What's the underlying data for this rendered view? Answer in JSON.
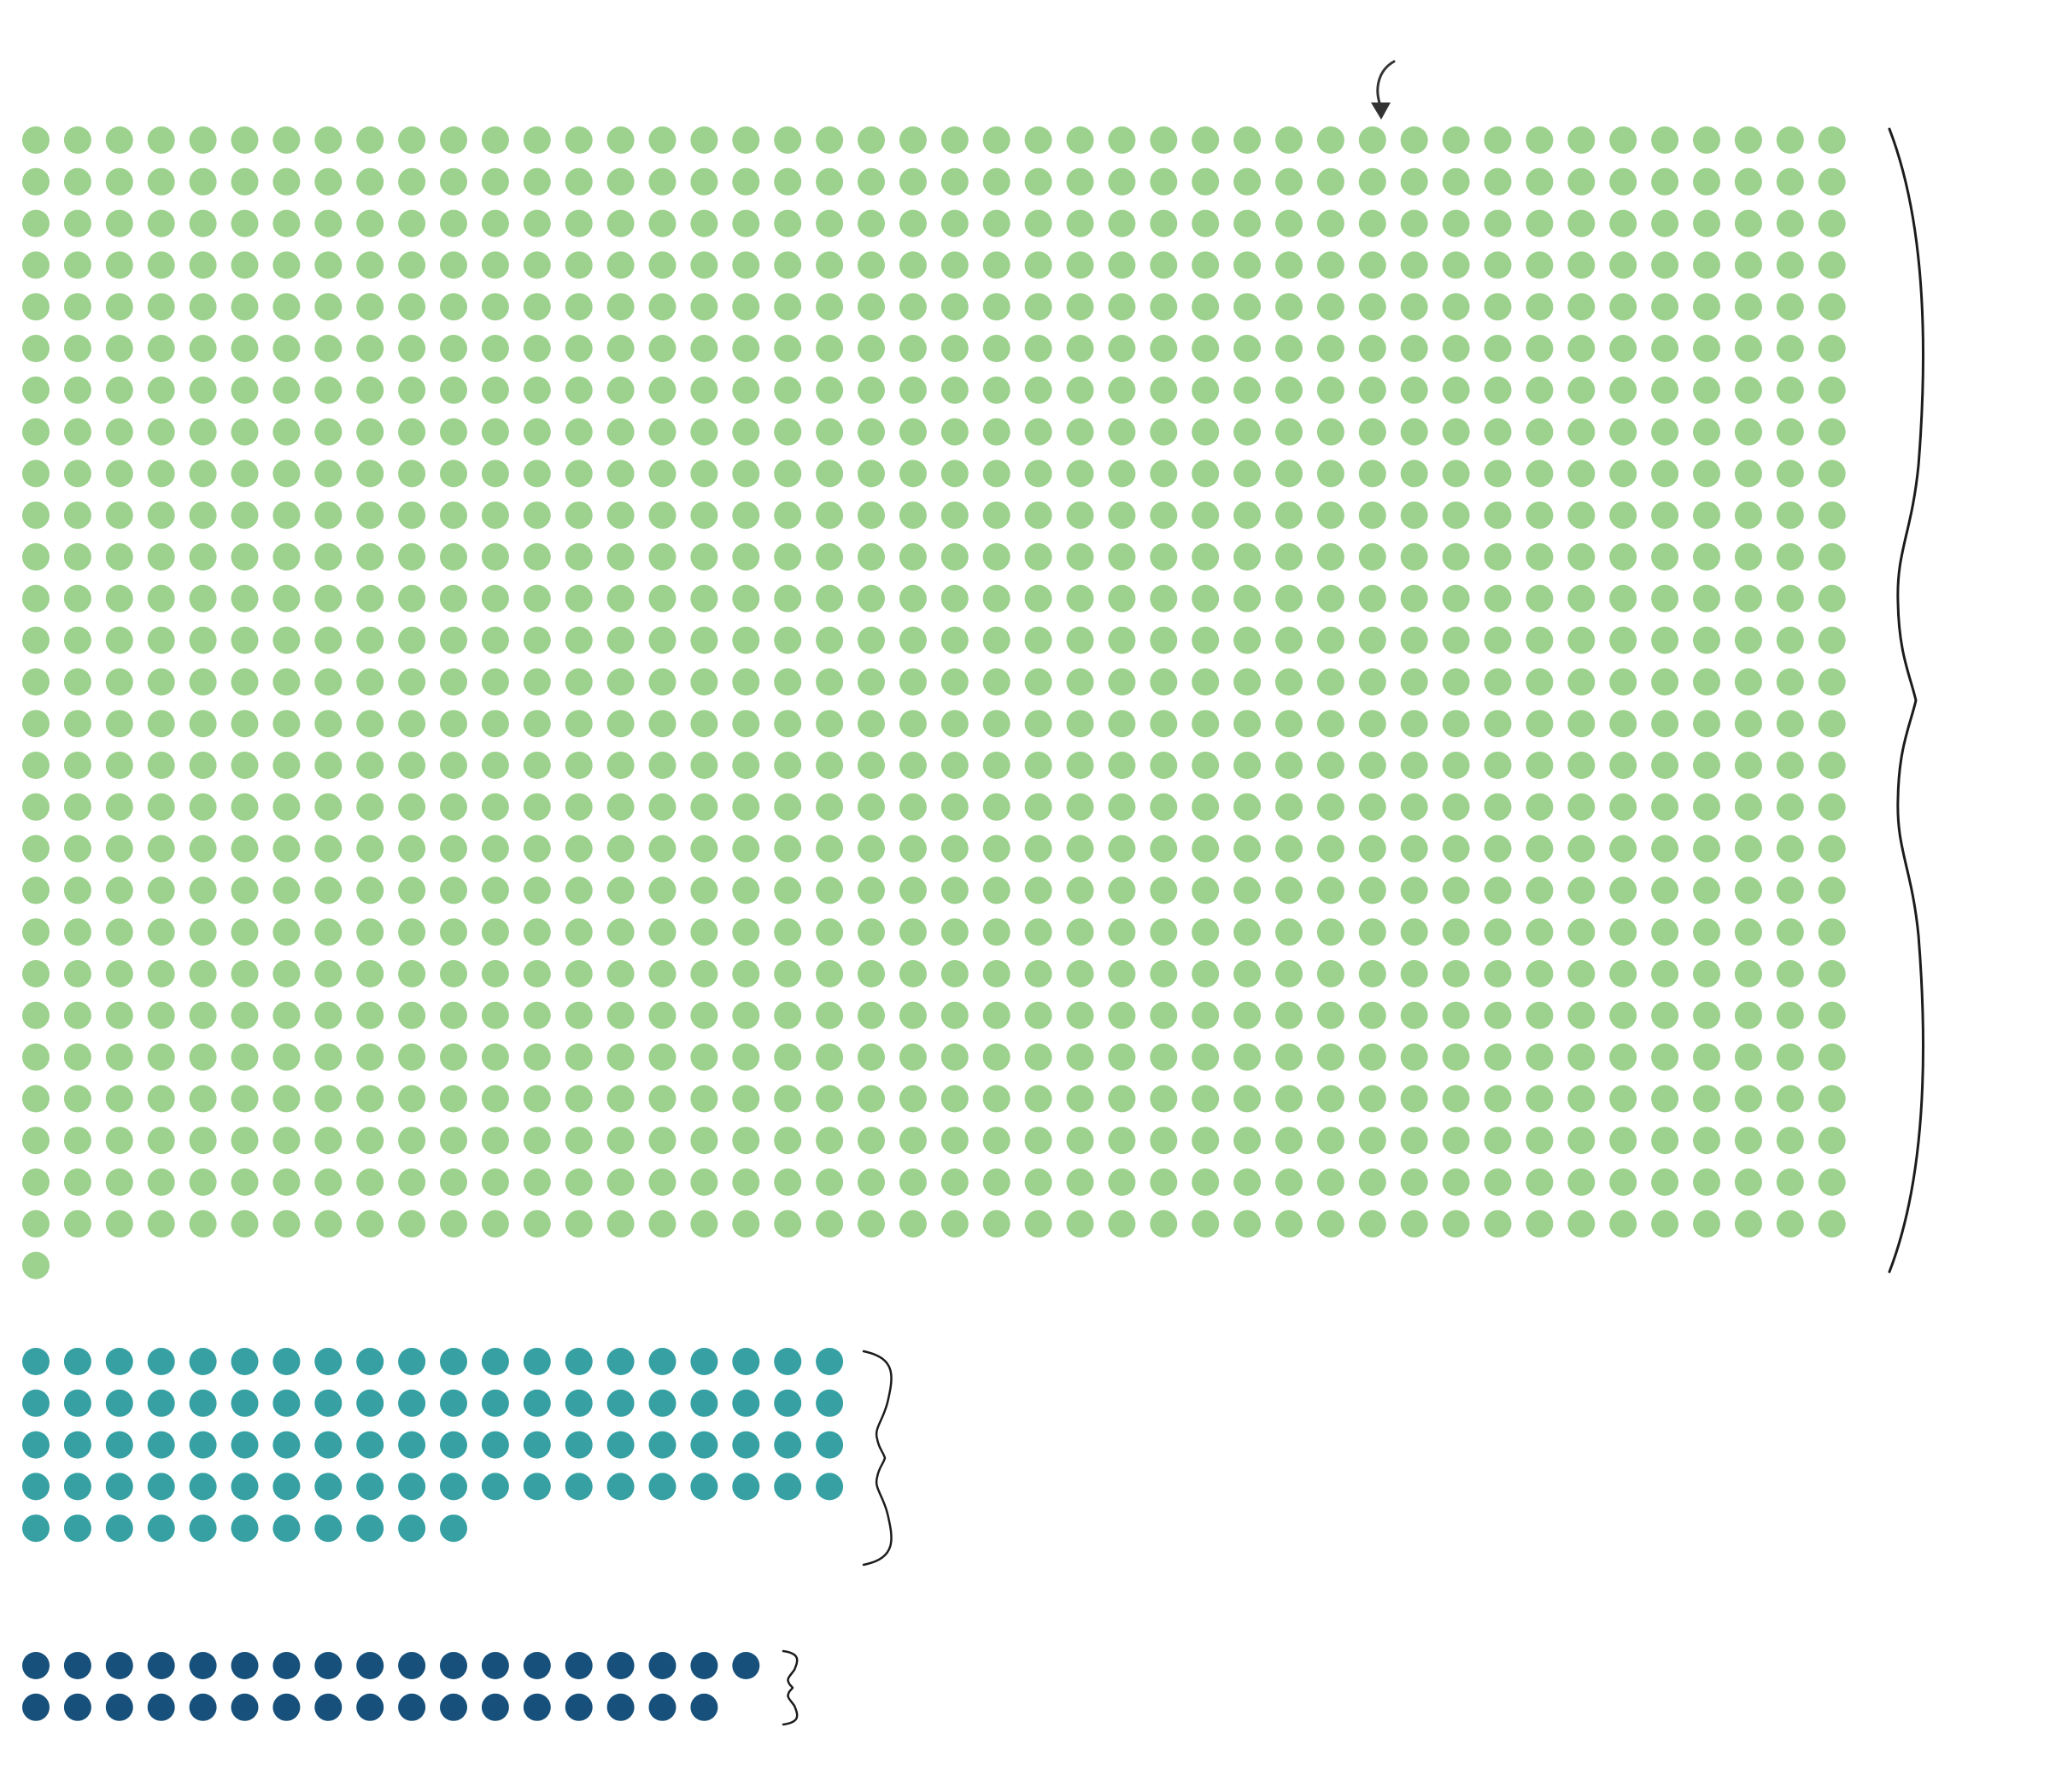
{
  "chart_data": {
    "type": "dot-matrix",
    "title": "",
    "xlabel": "",
    "ylabel": "",
    "legend": false,
    "grid": false,
    "highlighted_dot": {
      "group": 0,
      "row": 1,
      "column": 33
    },
    "groups": [
      {
        "color": "#9dd18e",
        "columns": 44,
        "count": 1189
      },
      {
        "color": "#36a0a2",
        "columns": 20,
        "count": 91
      },
      {
        "color": "#17507a",
        "columns": 18,
        "count": 35
      }
    ]
  }
}
